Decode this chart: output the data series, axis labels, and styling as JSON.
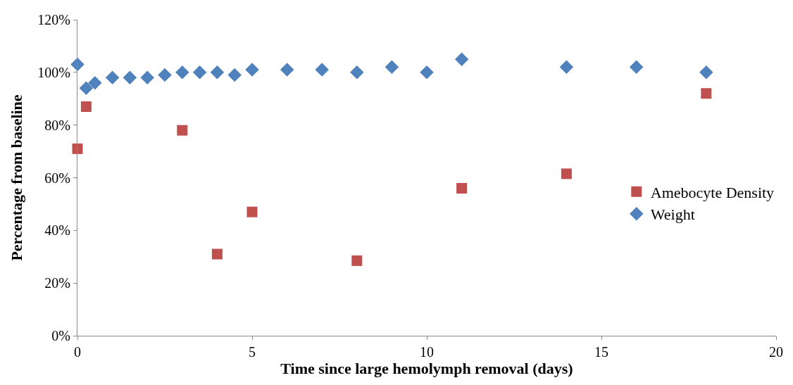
{
  "chart_data": {
    "type": "scatter",
    "xlabel": "Time since large hemolymph removal (days)",
    "ylabel": "Percentage from baseline",
    "xlim": [
      0,
      20
    ],
    "xticks": [
      0,
      5,
      10,
      15,
      20
    ],
    "ylim": [
      0,
      120
    ],
    "yticks": [
      {
        "value": 0,
        "label": "0%"
      },
      {
        "value": 20,
        "label": "20%"
      },
      {
        "value": 40,
        "label": "40%"
      },
      {
        "value": 60,
        "label": "60%"
      },
      {
        "value": 80,
        "label": "80%"
      },
      {
        "value": 100,
        "label": "100%"
      },
      {
        "value": 120,
        "label": "120%"
      }
    ],
    "legend": "right",
    "series": [
      {
        "name": "Amebocyte Density",
        "color": "#c0504d",
        "marker": "square",
        "x": [
          0,
          0.25,
          3,
          4,
          5,
          8,
          11,
          14,
          18
        ],
        "values": [
          71,
          87,
          78,
          31,
          47,
          28.5,
          56,
          61.5,
          92
        ]
      },
      {
        "name": "Weight",
        "color": "#4f81bd",
        "marker": "diamond",
        "x": [
          0,
          0.25,
          0.5,
          1,
          1.5,
          2,
          2.5,
          3,
          3.5,
          4,
          4.5,
          5,
          6,
          7,
          8,
          9,
          10,
          11,
          14,
          16,
          18
        ],
        "values": [
          103,
          94,
          96,
          98,
          98,
          98,
          99,
          100,
          100,
          100,
          99,
          101,
          101,
          101,
          100,
          102,
          100,
          105,
          102,
          102,
          100
        ]
      }
    ]
  }
}
